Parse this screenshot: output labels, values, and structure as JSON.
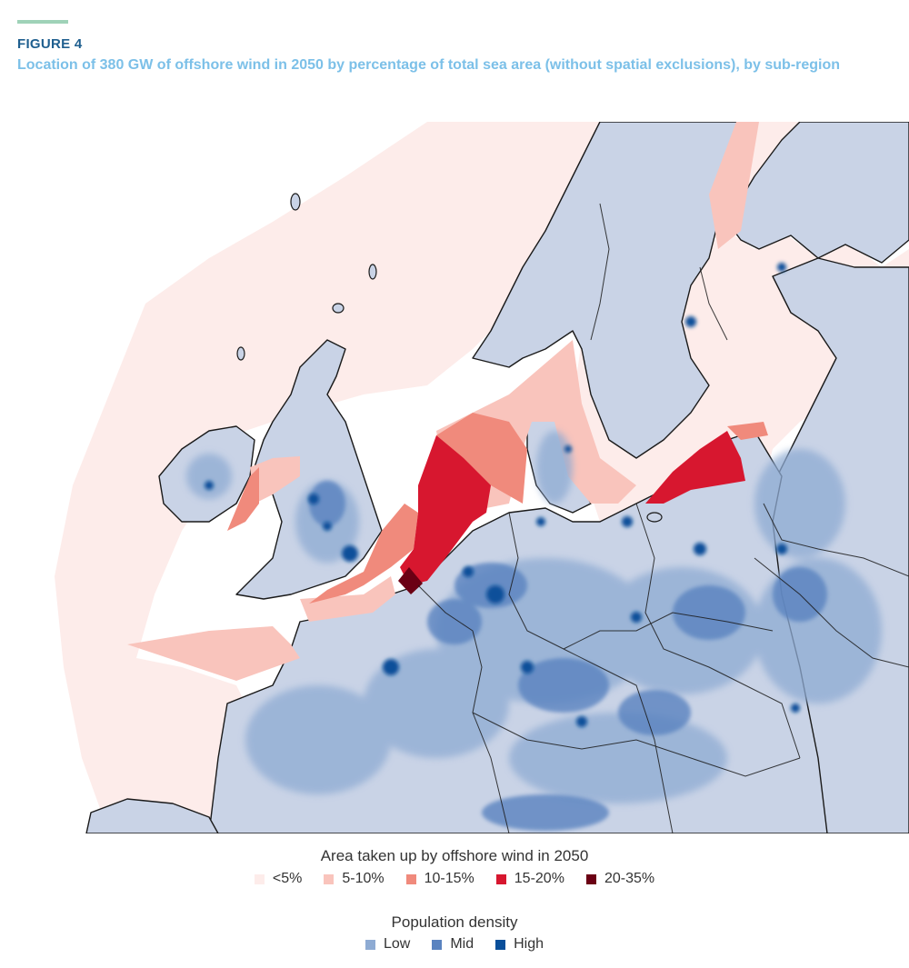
{
  "header": {
    "figure_label": "FIGURE 4",
    "title": "Location of 380 GW of offshore wind in 2050 by percentage of total sea area (without spatial exclusions), by sub-region"
  },
  "legend_offshore": {
    "title": "Area taken up by offshore wind in 2050",
    "items": [
      {
        "label": "<5%",
        "color": "#fdecea"
      },
      {
        "label": "5-10%",
        "color": "#f9c4bc"
      },
      {
        "label": "10-15%",
        "color": "#f08a7c"
      },
      {
        "label": "15-20%",
        "color": "#d7172f"
      },
      {
        "label": "20-35%",
        "color": "#6b0014"
      }
    ]
  },
  "legend_population": {
    "title": "Population density",
    "items": [
      {
        "label": "Low",
        "color": "#8eabd3"
      },
      {
        "label": "Mid",
        "color": "#5a83c0"
      },
      {
        "label": "High",
        "color": "#0a4f9a"
      }
    ]
  },
  "map_colors": {
    "land": "#c9d3e6",
    "sea_base": "#fdecea",
    "outside": "#ffffff",
    "border": "#1a1a1a"
  }
}
